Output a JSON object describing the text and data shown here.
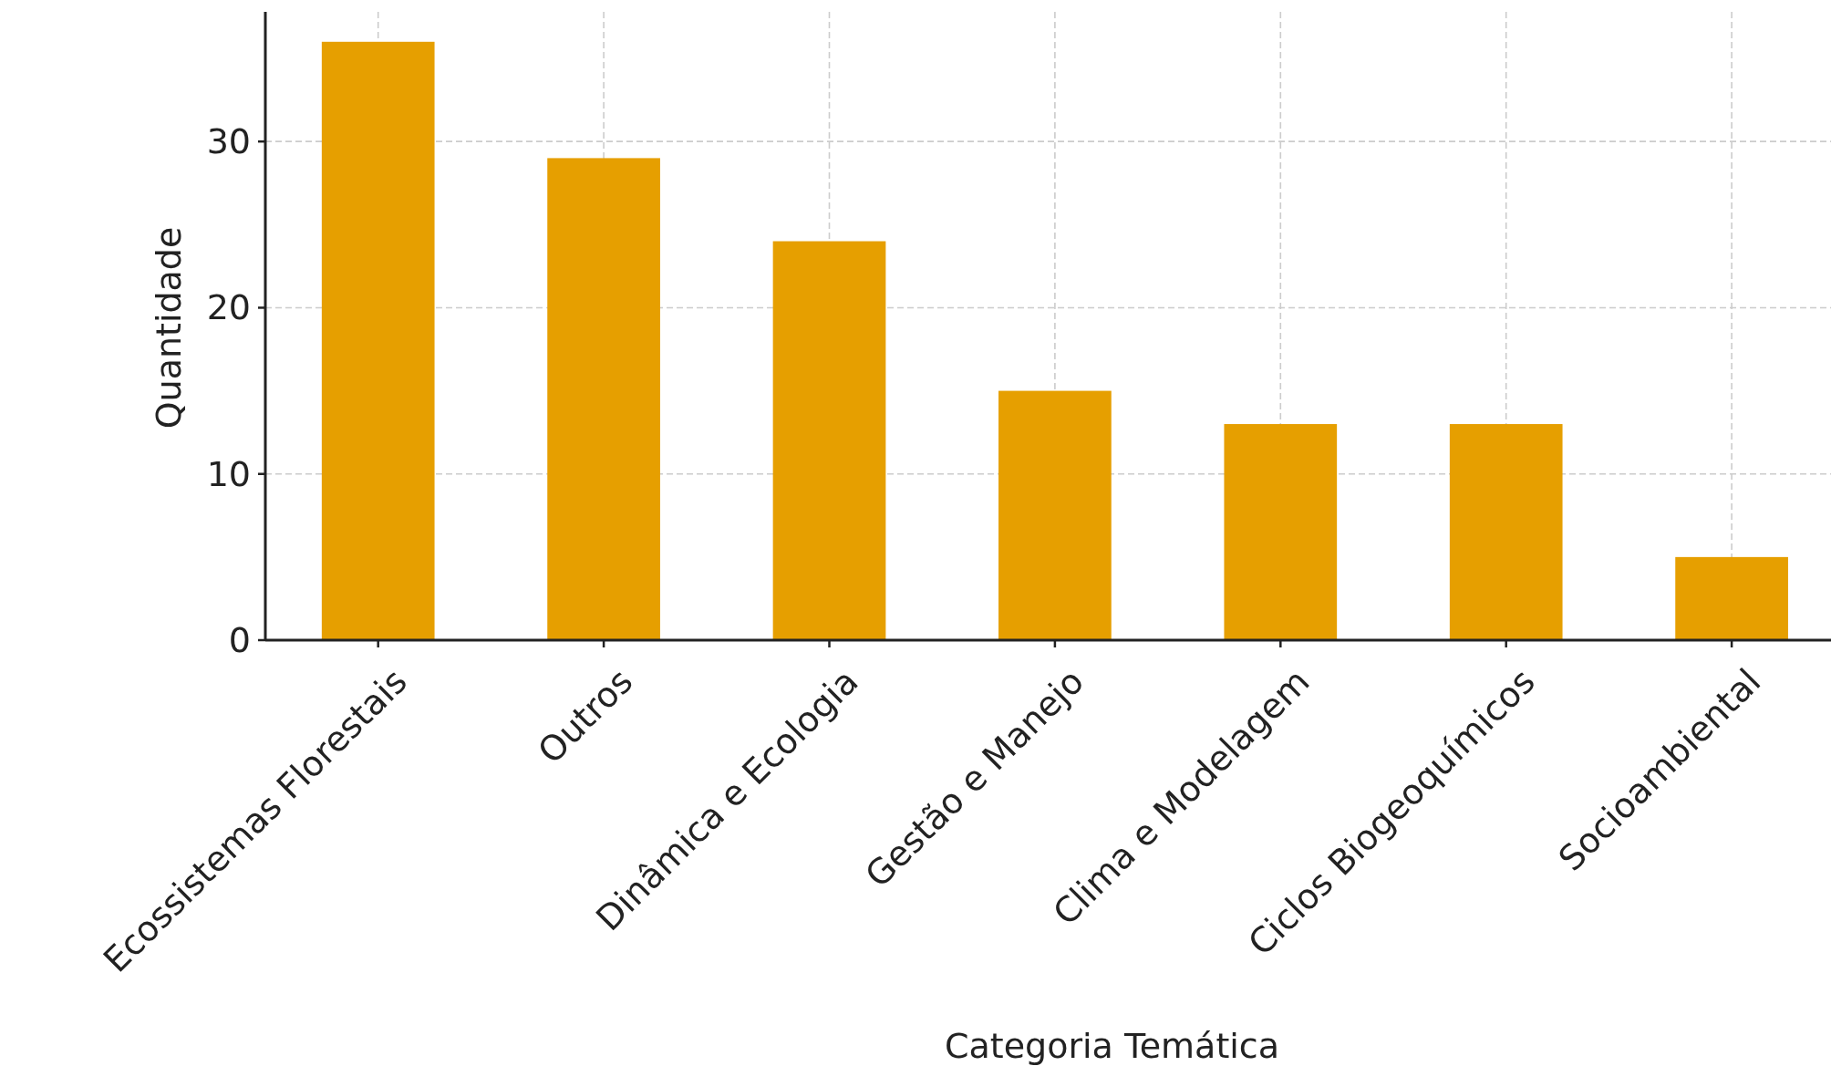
{
  "chart_data": {
    "type": "bar",
    "xlabel": "Categoria Temática",
    "ylabel": "Quantidade",
    "categories": [
      "Ecossistemas Florestais",
      "Outros",
      "Dinâmica e Ecologia",
      "Gestão e Manejo",
      "Clima e Modelagem",
      "Ciclos Biogeoquímicos",
      "Socioambiental"
    ],
    "values": [
      36,
      29,
      24,
      15,
      13,
      13,
      5
    ],
    "color": "#e69f00",
    "ylim": [
      0,
      37.8
    ],
    "yticks": [
      0,
      10,
      20,
      30
    ],
    "grid": true
  }
}
